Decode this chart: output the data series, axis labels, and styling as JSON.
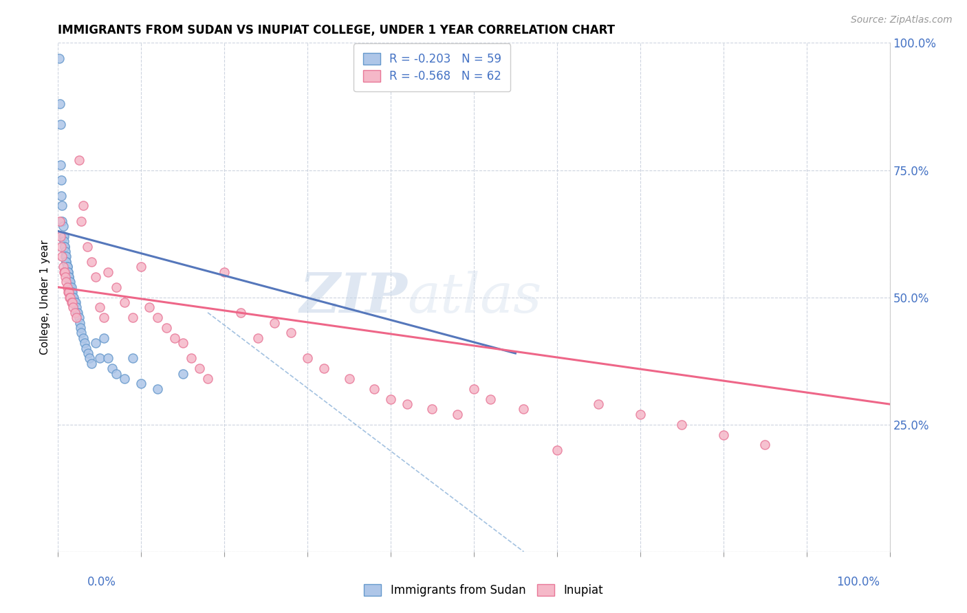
{
  "title": "IMMIGRANTS FROM SUDAN VS INUPIAT COLLEGE, UNDER 1 YEAR CORRELATION CHART",
  "source": "Source: ZipAtlas.com",
  "ylabel": "College, Under 1 year",
  "legend_r1": "R = -0.203",
  "legend_n1": "N = 59",
  "legend_r2": "R = -0.568",
  "legend_n2": "N = 62",
  "color_sudan_fill": "#aec6e8",
  "color_sudan_edge": "#6699cc",
  "color_inupiat_fill": "#f5b8c8",
  "color_inupiat_edge": "#e87898",
  "color_sudan_line": "#5577bb",
  "color_inupiat_line": "#ee6688",
  "watermark_zip": "#c8d8ee",
  "watermark_atlas": "#d8e4f0",
  "grid_color": "#c8d0dc",
  "sudan_x": [
    0.001,
    0.002,
    0.003,
    0.003,
    0.004,
    0.004,
    0.005,
    0.005,
    0.006,
    0.006,
    0.007,
    0.007,
    0.008,
    0.008,
    0.009,
    0.009,
    0.01,
    0.01,
    0.01,
    0.011,
    0.011,
    0.012,
    0.012,
    0.013,
    0.013,
    0.014,
    0.015,
    0.015,
    0.016,
    0.016,
    0.017,
    0.018,
    0.019,
    0.02,
    0.021,
    0.022,
    0.023,
    0.024,
    0.025,
    0.026,
    0.027,
    0.028,
    0.03,
    0.032,
    0.034,
    0.036,
    0.038,
    0.04,
    0.045,
    0.05,
    0.055,
    0.06,
    0.065,
    0.07,
    0.08,
    0.09,
    0.1,
    0.12,
    0.15
  ],
  "sudan_y": [
    0.97,
    0.88,
    0.84,
    0.76,
    0.73,
    0.7,
    0.68,
    0.65,
    0.64,
    0.62,
    0.62,
    0.61,
    0.6,
    0.6,
    0.59,
    0.58,
    0.58,
    0.57,
    0.57,
    0.56,
    0.56,
    0.55,
    0.55,
    0.54,
    0.54,
    0.53,
    0.53,
    0.52,
    0.52,
    0.51,
    0.51,
    0.5,
    0.5,
    0.49,
    0.49,
    0.48,
    0.47,
    0.47,
    0.46,
    0.45,
    0.44,
    0.43,
    0.42,
    0.41,
    0.4,
    0.39,
    0.38,
    0.37,
    0.41,
    0.38,
    0.42,
    0.38,
    0.36,
    0.35,
    0.34,
    0.38,
    0.33,
    0.32,
    0.35
  ],
  "inupiat_x": [
    0.002,
    0.003,
    0.004,
    0.005,
    0.006,
    0.007,
    0.008,
    0.009,
    0.01,
    0.011,
    0.012,
    0.013,
    0.014,
    0.015,
    0.016,
    0.017,
    0.018,
    0.02,
    0.022,
    0.025,
    0.028,
    0.03,
    0.035,
    0.04,
    0.045,
    0.05,
    0.055,
    0.06,
    0.07,
    0.08,
    0.09,
    0.1,
    0.11,
    0.12,
    0.13,
    0.14,
    0.15,
    0.16,
    0.17,
    0.18,
    0.2,
    0.22,
    0.24,
    0.26,
    0.28,
    0.3,
    0.32,
    0.35,
    0.38,
    0.4,
    0.42,
    0.45,
    0.48,
    0.5,
    0.52,
    0.56,
    0.6,
    0.65,
    0.7,
    0.75,
    0.8,
    0.85
  ],
  "inupiat_y": [
    0.65,
    0.62,
    0.6,
    0.58,
    0.56,
    0.55,
    0.55,
    0.54,
    0.53,
    0.52,
    0.51,
    0.51,
    0.5,
    0.5,
    0.49,
    0.49,
    0.48,
    0.47,
    0.46,
    0.77,
    0.65,
    0.68,
    0.6,
    0.57,
    0.54,
    0.48,
    0.46,
    0.55,
    0.52,
    0.49,
    0.46,
    0.56,
    0.48,
    0.46,
    0.44,
    0.42,
    0.41,
    0.38,
    0.36,
    0.34,
    0.55,
    0.47,
    0.42,
    0.45,
    0.43,
    0.38,
    0.36,
    0.34,
    0.32,
    0.3,
    0.29,
    0.28,
    0.27,
    0.32,
    0.3,
    0.28,
    0.2,
    0.29,
    0.27,
    0.25,
    0.23,
    0.21
  ],
  "sudan_line_x0": 0.0,
  "sudan_line_x1": 0.55,
  "sudan_line_y0": 0.63,
  "sudan_line_y1": 0.39,
  "inupiat_line_x0": 0.0,
  "inupiat_line_x1": 1.0,
  "inupiat_line_y0": 0.52,
  "inupiat_line_y1": 0.29,
  "dashed_line_x0": 0.18,
  "dashed_line_x1": 0.56,
  "dashed_line_y0": 0.47,
  "dashed_line_y1": 0.0,
  "xlim": [
    0.0,
    1.0
  ],
  "ylim": [
    0.0,
    1.0
  ]
}
